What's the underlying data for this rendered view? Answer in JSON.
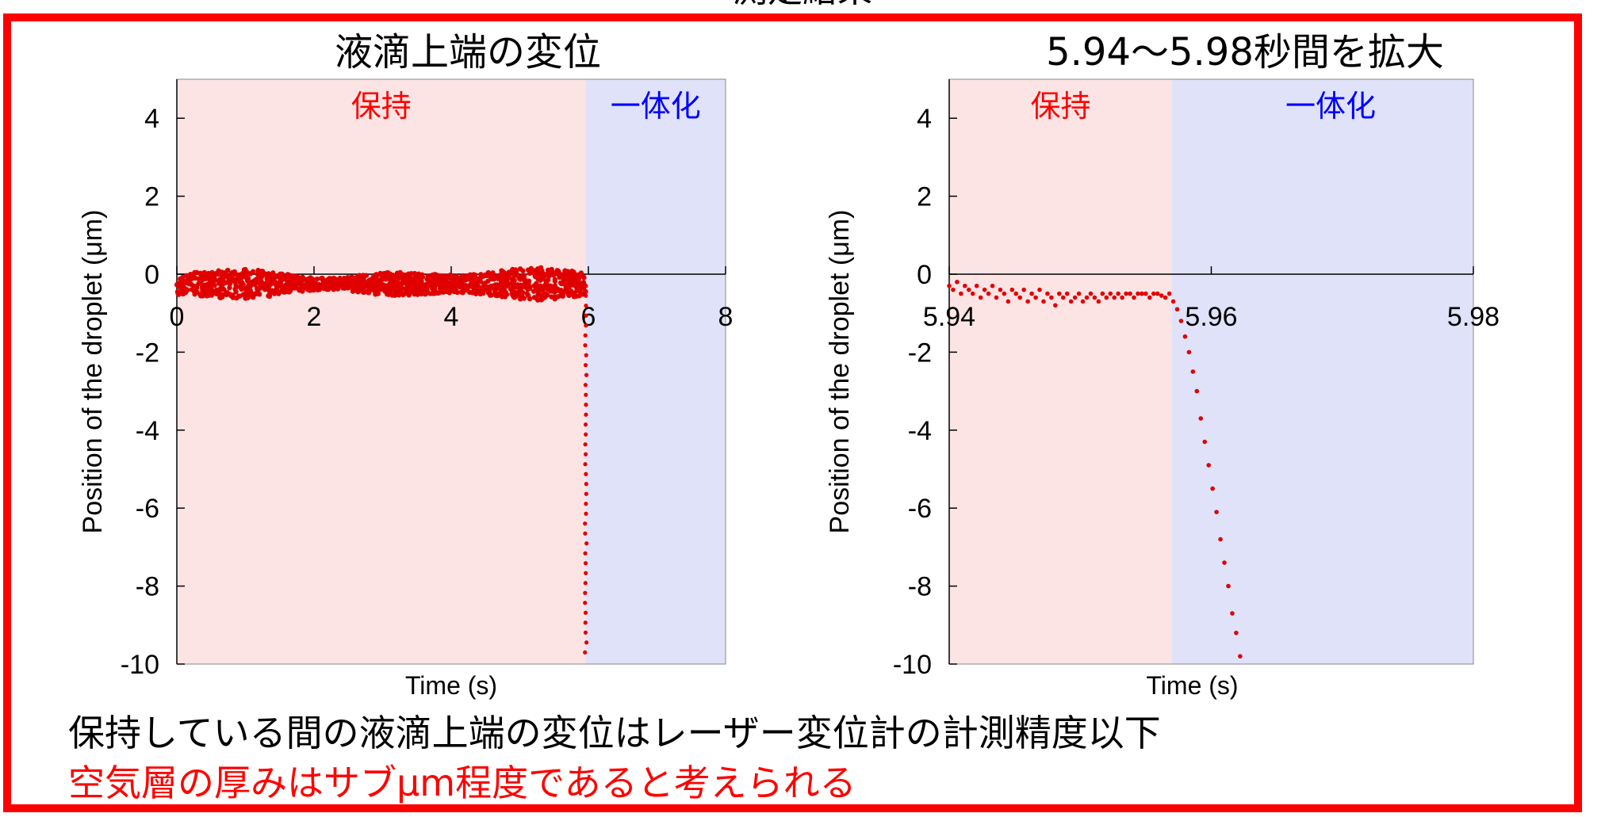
{
  "header_partial": "測定結果",
  "footer": {
    "line1": "保持している間の液滴上端の変位はレーザー変位計の計測精度以下",
    "line2": "空気層の厚みはサブμm程度であると考えられる"
  },
  "colors": {
    "frame": "#ff0000",
    "hold_region": "#fde4e4",
    "merge_region": "#e0e2fa",
    "points": "#e00000",
    "hold_text": "#ff0000",
    "merge_text": "#0000ff"
  },
  "chart_data": [
    {
      "type": "scatter",
      "title": "液滴上端の変位",
      "xlabel": "Time (s)",
      "ylabel": "Position of the droplet (μm)",
      "xlim": [
        0,
        8
      ],
      "ylim": [
        -10,
        5
      ],
      "xticks": [
        "0",
        "2",
        "4",
        "6",
        "8"
      ],
      "yticks": [
        "4",
        "2",
        "0",
        "-2",
        "-4",
        "-6",
        "-8",
        "-10"
      ],
      "x_axis_position": "y = 0",
      "regions": [
        {
          "label": "保持",
          "x": [
            0,
            5.96
          ],
          "color": "#fde4e4",
          "label_color": "#ff0000"
        },
        {
          "label": "一体化",
          "x": [
            5.96,
            8
          ],
          "color": "#e0e2fa",
          "label_color": "#0000ff"
        }
      ],
      "series": [
        {
          "description_of_trend": "dense noisy band around -0.3 μm from 0 to ~5.96 s, then vertical drop to -10 at ~5.96 s",
          "hold_band": {
            "x_range": [
              0,
              5.96
            ],
            "y_center": -0.25,
            "y_spread": 0.35
          },
          "drop": {
            "x": 5.962,
            "y_range": [
              -0.3,
              -9.7
            ]
          }
        }
      ]
    },
    {
      "type": "scatter",
      "title": "5.94～5.98秒間を拡大",
      "xlabel": "Time (s)",
      "ylabel": "Position of the droplet (μm)",
      "xlim": [
        5.94,
        5.98
      ],
      "ylim": [
        -10,
        5
      ],
      "xticks": [
        "5.94",
        "5.96",
        "5.98"
      ],
      "yticks": [
        "4",
        "2",
        "0",
        "-2",
        "-4",
        "-6",
        "-8",
        "-10"
      ],
      "x_axis_position": "y = 0",
      "regions": [
        {
          "label": "保持",
          "x": [
            5.94,
            5.957
          ],
          "color": "#fde4e4",
          "label_color": "#ff0000"
        },
        {
          "label": "一体化",
          "x": [
            5.957,
            5.98
          ],
          "color": "#e0e2fa",
          "label_color": "#0000ff"
        }
      ],
      "series": [
        {
          "x": [
            5.94,
            5.9403,
            5.9406,
            5.9409,
            5.9412,
            5.9415,
            5.9418,
            5.9421,
            5.9424,
            5.9427,
            5.943,
            5.9433,
            5.9436,
            5.9439,
            5.9442,
            5.9445,
            5.9448,
            5.9451,
            5.9454,
            5.9457,
            5.946,
            5.9463,
            5.9466,
            5.9469,
            5.9472,
            5.9475,
            5.9478,
            5.9481,
            5.9484,
            5.9487,
            5.949,
            5.9493,
            5.9496,
            5.9499,
            5.9502,
            5.9505,
            5.9508,
            5.9511,
            5.9514,
            5.9517,
            5.952,
            5.9523,
            5.9526,
            5.9529,
            5.9532,
            5.9535,
            5.9538,
            5.9541,
            5.9544,
            5.9547,
            5.955,
            5.9553,
            5.9556,
            5.9559,
            5.9562,
            5.9565,
            5.9568,
            5.9571,
            5.9574,
            5.9577,
            5.958,
            5.9583,
            5.9586,
            5.9589,
            5.9592,
            5.9595,
            5.9598,
            5.9601,
            5.9604,
            5.9607,
            5.961,
            5.9613,
            5.9616,
            5.9619,
            5.9622
          ],
          "y": [
            -0.3,
            -0.4,
            -0.2,
            -0.5,
            -0.3,
            -0.4,
            -0.5,
            -0.3,
            -0.6,
            -0.4,
            -0.5,
            -0.3,
            -0.6,
            -0.4,
            -0.5,
            -0.7,
            -0.4,
            -0.5,
            -0.6,
            -0.4,
            -0.7,
            -0.5,
            -0.6,
            -0.4,
            -0.7,
            -0.5,
            -0.6,
            -0.8,
            -0.5,
            -0.6,
            -0.5,
            -0.7,
            -0.6,
            -0.5,
            -0.7,
            -0.6,
            -0.5,
            -0.6,
            -0.7,
            -0.5,
            -0.6,
            -0.5,
            -0.6,
            -0.5,
            -0.6,
            -0.5,
            -0.5,
            -0.6,
            -0.5,
            -0.5,
            -0.5,
            -0.6,
            -0.5,
            -0.5,
            -0.55,
            -0.6,
            -0.5,
            -0.7,
            -0.9,
            -1.2,
            -1.6,
            -2.0,
            -2.5,
            -3.0,
            -3.7,
            -4.3,
            -4.9,
            -5.5,
            -6.1,
            -6.8,
            -7.4,
            -8.0,
            -8.7,
            -9.2,
            -9.8
          ]
        }
      ]
    }
  ]
}
